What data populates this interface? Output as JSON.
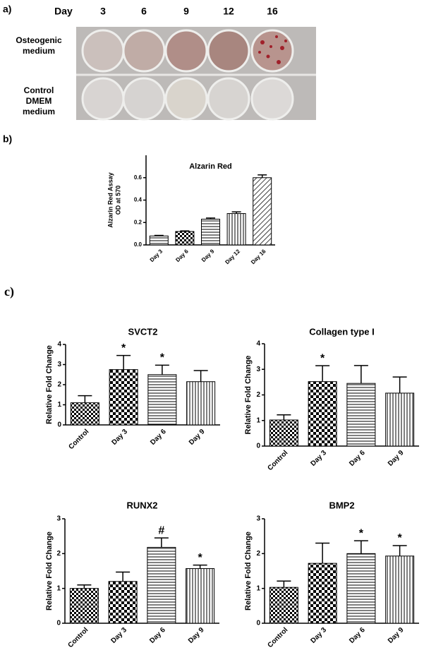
{
  "panel_labels": [
    "a)",
    "b)",
    "c)"
  ],
  "panel_a": {
    "header": "Day",
    "days": [
      "3",
      "6",
      "9",
      "12",
      "16"
    ],
    "rows": [
      [
        "Osteogenic",
        "medium"
      ],
      [
        "Control",
        "DMEM",
        "medium"
      ]
    ]
  },
  "chart_data": [
    {
      "type": "bar",
      "title": "Alzarin Red",
      "ylabel": [
        "Alzarin Red Assay",
        "OD at 570"
      ],
      "categories": [
        "Day 3",
        "Day 6",
        "Day 9",
        "Day 12",
        "Day 16"
      ],
      "series": [
        {
          "color": "#000000",
          "values": [
            0.08,
            0.12,
            0.23,
            0.28,
            0.6
          ],
          "errors": [
            0.005,
            0.005,
            0.01,
            0.015,
            0.025
          ]
        }
      ],
      "ylim": [
        0,
        0.8
      ],
      "yticks": [
        {
          "value": 0,
          "label": "0.0"
        },
        0.2,
        0.4,
        0.6
      ]
    },
    {
      "type": "bar",
      "title": "SVCT2",
      "ylabel": [
        "Relative Fold Change"
      ],
      "categories": [
        "Control",
        "Day 3",
        "Day 6",
        "Day 9"
      ],
      "series": [
        {
          "color": "#000000",
          "values": [
            1.1,
            2.75,
            2.5,
            2.15
          ],
          "errors": [
            0.35,
            0.7,
            0.47,
            0.55
          ]
        }
      ],
      "annotations": [
        null,
        "*",
        "*",
        null
      ],
      "ylim": [
        0,
        4
      ],
      "yticks": [
        0,
        1,
        2,
        3,
        4
      ]
    },
    {
      "type": "bar",
      "title": "Collagen type I",
      "ylabel": [
        "Relative Fold Change"
      ],
      "categories": [
        "Control",
        "Day 3",
        "Day 6",
        "Day 9"
      ],
      "series": [
        {
          "color": "#000000",
          "values": [
            1.02,
            2.52,
            2.45,
            2.07
          ],
          "errors": [
            0.2,
            0.62,
            0.7,
            0.63
          ]
        }
      ],
      "annotations": [
        null,
        "*",
        null,
        null
      ],
      "ylim": [
        0,
        4
      ],
      "yticks": [
        0,
        1,
        2,
        3,
        4
      ]
    },
    {
      "type": "bar",
      "title": "RUNX2",
      "ylabel": [
        "Relative Fold Change"
      ],
      "categories": [
        "Control",
        "Day 3",
        "Day 6",
        "Day 9"
      ],
      "series": [
        {
          "color": "#000000",
          "values": [
            1.0,
            1.2,
            2.18,
            1.57
          ],
          "errors": [
            0.1,
            0.27,
            0.27,
            0.1
          ]
        }
      ],
      "annotations": [
        null,
        null,
        "#",
        "*"
      ],
      "ylim": [
        0,
        3
      ],
      "yticks": [
        0,
        1,
        2,
        3
      ]
    },
    {
      "type": "bar",
      "title": "BMP2",
      "ylabel": [
        "Relative Fold Change"
      ],
      "categories": [
        "Control",
        "Day 3",
        "Day 6",
        "Day 9"
      ],
      "series": [
        {
          "color": "#000000",
          "values": [
            1.03,
            1.72,
            2.0,
            1.93
          ],
          "errors": [
            0.18,
            0.58,
            0.37,
            0.3
          ]
        }
      ],
      "annotations": [
        null,
        null,
        "*",
        "*"
      ],
      "ylim": [
        0,
        3
      ],
      "yticks": [
        0,
        1,
        2,
        3
      ]
    }
  ]
}
